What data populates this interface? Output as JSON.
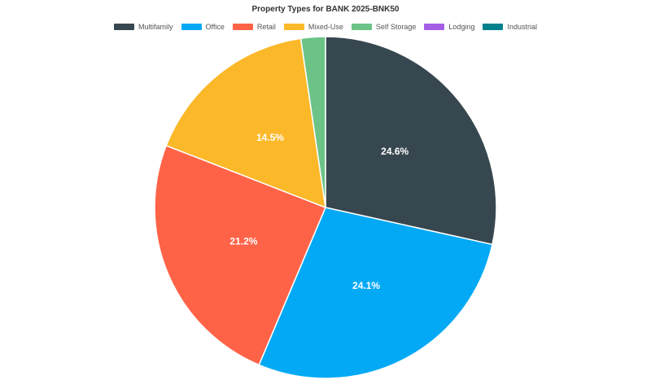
{
  "chart_data": {
    "type": "pie",
    "title": "Property Types for BANK 2025-BNK50",
    "legend_position": "top",
    "slices": [
      {
        "name": "Multifamily",
        "value": 24.6,
        "label": "24.6%",
        "color": "#37474f"
      },
      {
        "name": "Office",
        "value": 24.1,
        "label": "24.1%",
        "color": "#03a9f4"
      },
      {
        "name": "Retail",
        "value": 21.2,
        "label": "21.2%",
        "color": "#ff6347"
      },
      {
        "name": "Mixed-Use",
        "value": 14.5,
        "label": "14.5%",
        "color": "#fbb829"
      },
      {
        "name": "Self Storage",
        "value": 2.0,
        "label": "",
        "color": "#6cc387"
      },
      {
        "name": "Lodging",
        "value": 0,
        "label": "",
        "color": "#a45ee5"
      },
      {
        "name": "Industrial",
        "value": 0,
        "label": "",
        "color": "#00808a"
      }
    ]
  }
}
